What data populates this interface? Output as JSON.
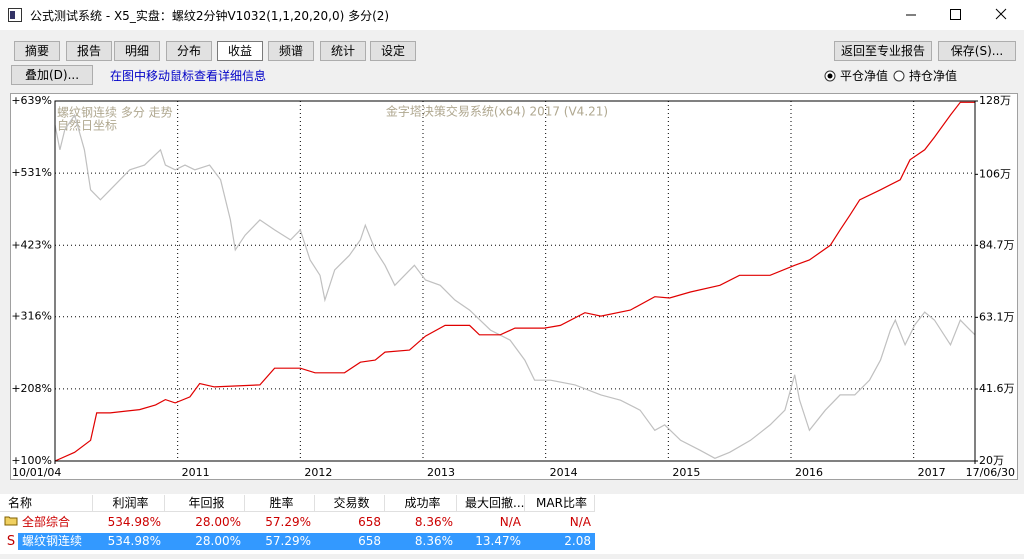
{
  "window": {
    "title": "公式测试系统 - X5_实盘：螺纹2分钟V1032(1,1,20,20,0) 多分(2)"
  },
  "toolbar": {
    "tabs": [
      {
        "label": "摘要"
      },
      {
        "label": "报告"
      },
      {
        "label": "明细"
      },
      {
        "label": "分布"
      },
      {
        "label": "收益",
        "selected": true
      },
      {
        "label": "频谱"
      },
      {
        "label": "统计"
      },
      {
        "label": "设定"
      }
    ],
    "right_buttons": [
      "返回至专业报告",
      "保存(S)..."
    ],
    "overlay_button": "叠加(D)...",
    "hint": "在图中移动鼠标查看详细信息",
    "radios": [
      {
        "label": "平仓净值",
        "checked": true
      },
      {
        "label": "持仓净值",
        "checked": false
      }
    ]
  },
  "chart": {
    "type": "line",
    "annotations": [
      "螺纹钢连续 多分 走势",
      "自然日坐标",
      "金字塔决策交易系统(x64) 2017 (V4.21)"
    ],
    "xlim": [
      2010,
      2017.5
    ],
    "xticks": [
      {
        "value": 2010,
        "label": "10/01/04"
      },
      2011,
      2012,
      2013,
      2014,
      2015,
      2016,
      2017,
      {
        "value": 2017.5,
        "label": "17/06/30"
      }
    ],
    "ylim": [
      100,
      639
    ],
    "yticks": [
      {
        "value": 639,
        "label": "+639%"
      },
      {
        "value": 531,
        "label": "+531%"
      },
      {
        "value": 423,
        "label": "+423%"
      },
      {
        "value": 316,
        "label": "+316%"
      },
      {
        "value": 208,
        "label": "+208%"
      },
      {
        "value": 100,
        "label": "+100%"
      }
    ],
    "y2lim": [
      20,
      128
    ],
    "y2ticks": [
      {
        "value": 128,
        "label": "128万"
      },
      {
        "value": 106,
        "label": "106万"
      },
      {
        "value": 84.7,
        "label": "84.7万"
      },
      {
        "value": 63.1,
        "label": "63.1万"
      },
      {
        "value": 41.6,
        "label": "41.6万"
      },
      {
        "value": 20,
        "label": "20万"
      }
    ],
    "grid": true,
    "series": [
      {
        "color": "#c0c0c0",
        "x": [
          2010.0,
          2010.04,
          2010.08,
          2010.16,
          2010.24,
          2010.29,
          2010.37,
          2010.45,
          2010.53,
          2010.61,
          2010.73,
          2010.86,
          2010.9,
          2010.98,
          2011.06,
          2011.14,
          2011.26,
          2011.35,
          2011.43,
          2011.47,
          2011.55,
          2011.67,
          2011.79,
          2011.92,
          2012.0,
          2012.08,
          2012.16,
          2012.2,
          2012.28,
          2012.4,
          2012.49,
          2012.53,
          2012.61,
          2012.69,
          2012.77,
          2012.85,
          2012.93,
          2013.02,
          2013.14,
          2013.26,
          2013.38,
          2013.55,
          2013.71,
          2013.83,
          2013.91,
          2014.04,
          2014.24,
          2014.45,
          2014.61,
          2014.77,
          2014.89,
          2014.97,
          2015.1,
          2015.26,
          2015.38,
          2015.5,
          2015.67,
          2015.83,
          2015.95,
          2016.03,
          2016.07,
          2016.15,
          2016.28,
          2016.4,
          2016.52,
          2016.64,
          2016.73,
          2016.81,
          2016.85,
          2016.93,
          2017.01,
          2017.09,
          2017.17,
          2017.3,
          2017.38,
          2017.46,
          2017.5
        ],
        "values": [
          603,
          566,
          596,
          618,
          566,
          506,
          491,
          506,
          521,
          536,
          543,
          566,
          543,
          536,
          543,
          536,
          543,
          521,
          461,
          416,
          438,
          461,
          446,
          431,
          446,
          401,
          378,
          341,
          386,
          408,
          431,
          453,
          416,
          393,
          363,
          378,
          393,
          371,
          363,
          341,
          326,
          296,
          281,
          251,
          221,
          221,
          214,
          199,
          191,
          176,
          146,
          154,
          131,
          116,
          104,
          113,
          131,
          154,
          176,
          229,
          191,
          146,
          176,
          199,
          199,
          221,
          251,
          296,
          311,
          274,
          304,
          323,
          311,
          274,
          311,
          296,
          289
        ]
      },
      {
        "color": "#e00000",
        "x": [
          2010.0,
          2010.16,
          2010.29,
          2010.34,
          2010.45,
          2010.69,
          2010.82,
          2010.9,
          2010.98,
          2011.1,
          2011.18,
          2011.3,
          2011.67,
          2011.79,
          2012.0,
          2012.12,
          2012.36,
          2012.49,
          2012.61,
          2012.69,
          2012.89,
          2013.02,
          2013.18,
          2013.38,
          2013.46,
          2013.63,
          2013.75,
          2013.99,
          2014.12,
          2014.32,
          2014.45,
          2014.69,
          2014.89,
          2015.01,
          2015.18,
          2015.42,
          2015.58,
          2015.83,
          2016.03,
          2016.15,
          2016.32,
          2016.4,
          2016.48,
          2016.56,
          2016.73,
          2016.89,
          2016.97,
          2017.09,
          2017.17,
          2017.3,
          2017.38,
          2017.5
        ],
        "values": [
          100,
          113,
          131,
          172,
          172,
          177,
          184,
          192,
          187,
          196,
          216,
          211,
          214,
          239,
          239,
          232,
          232,
          248,
          251,
          263,
          266,
          287,
          303,
          303,
          289,
          289,
          299,
          299,
          303,
          322,
          317,
          326,
          346,
          344,
          353,
          363,
          378,
          378,
          393,
          401,
          423,
          446,
          468,
          491,
          506,
          521,
          551,
          566,
          585,
          618,
          637,
          637
        ]
      }
    ]
  },
  "table": {
    "headers": [
      "名称",
      "利润率",
      "年回报",
      "胜率",
      "交易数",
      "成功率",
      "最大回撤...",
      "MAR比率"
    ],
    "rows": [
      {
        "cells": [
          "全部综合",
          "534.98%",
          "28.00%",
          "57.29%",
          "658",
          "8.36%",
          "N/A",
          "N/A"
        ],
        "color": "#cc0000"
      },
      {
        "icon": "S",
        "cells": [
          "螺纹钢连续",
          "534.98%",
          "28.00%",
          "57.29%",
          "658",
          "8.36%",
          "13.47%",
          "2.08"
        ],
        "selected": true
      }
    ]
  }
}
